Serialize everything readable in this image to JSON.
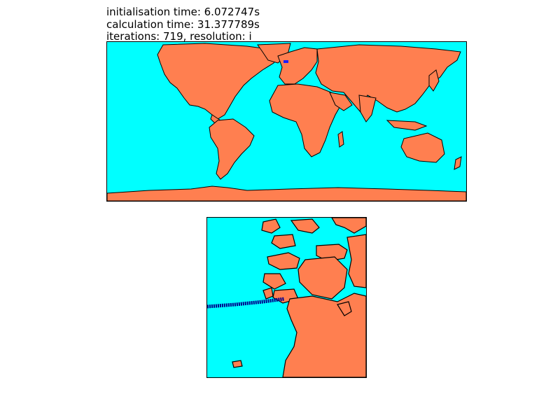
{
  "header": {
    "line1": "initialisation time: 6.072747s",
    "line2": "calculation time: 31.377789s",
    "line3": "iterations: 719,  resolution: i"
  },
  "colors": {
    "ocean": "#00ffff",
    "land": "#ff7f50",
    "coastline": "#000000",
    "route": "#00008b",
    "marker": "#1e1eff"
  },
  "maps": {
    "world": {
      "projection": "cylindrical",
      "extent": "global"
    },
    "detail": {
      "extent": "Norwegian coast",
      "track": "route-track"
    }
  }
}
